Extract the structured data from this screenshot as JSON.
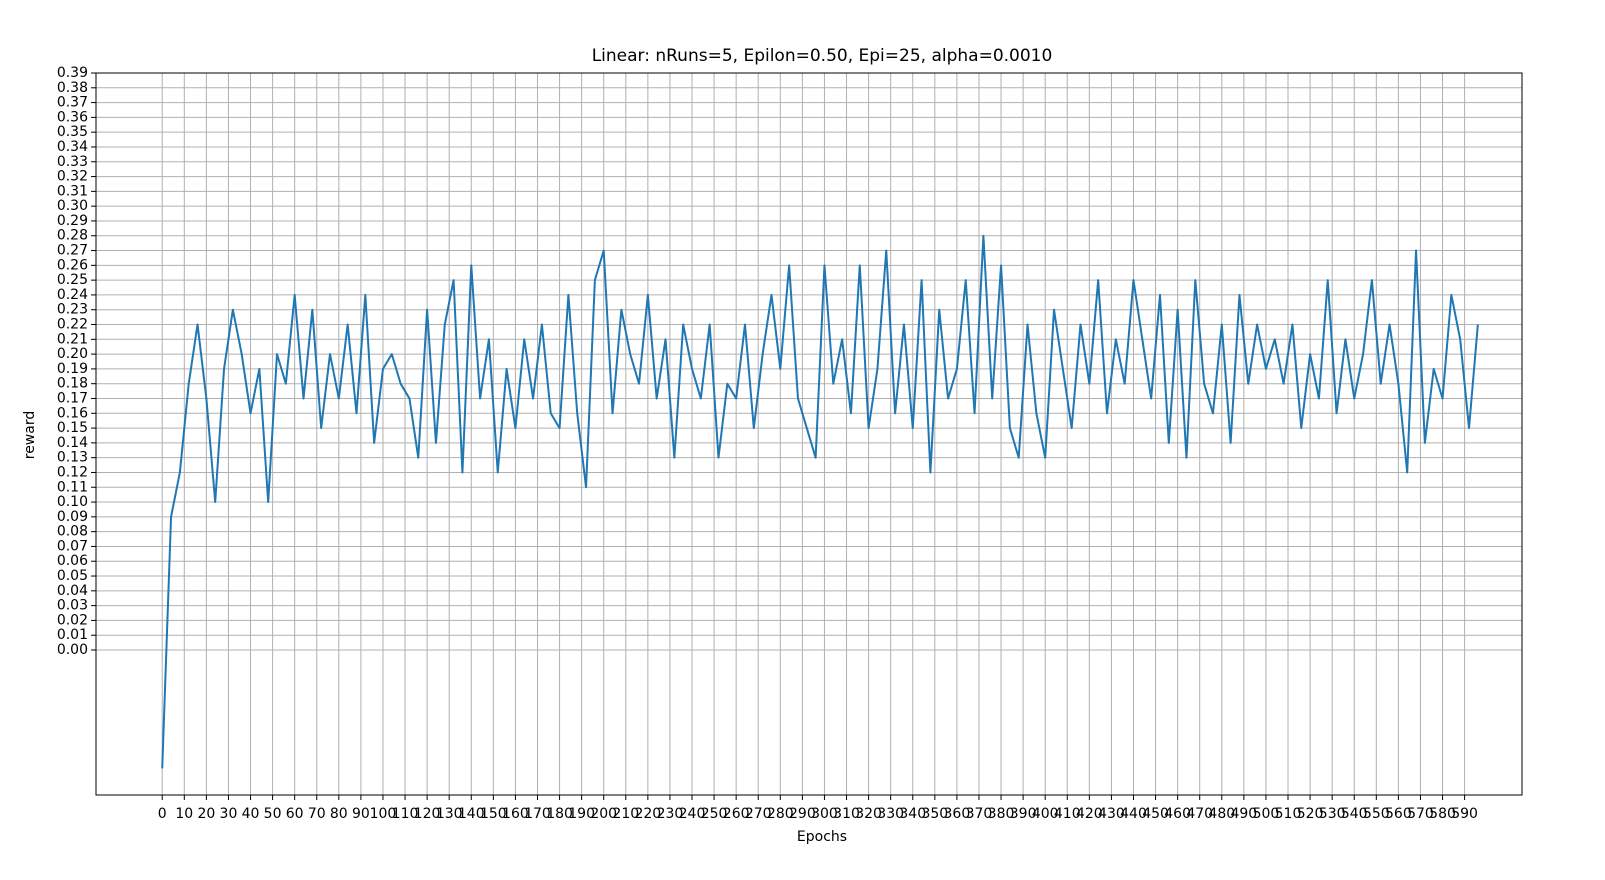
{
  "chart_data": {
    "type": "line",
    "title": "Linear: nRuns=5, Epilon=0.50, Epi=25, alpha=0.0010",
    "x_label": "Epochs",
    "y_label": "reward",
    "grid": true,
    "xlim": [
      -30,
      616
    ],
    "ylim": [
      -0.098,
      0.39
    ],
    "xticks": [
      0,
      10,
      20,
      30,
      40,
      50,
      60,
      70,
      80,
      90,
      100,
      110,
      120,
      130,
      140,
      150,
      160,
      170,
      180,
      190,
      200,
      210,
      220,
      230,
      240,
      250,
      260,
      270,
      280,
      290,
      300,
      310,
      320,
      330,
      340,
      350,
      360,
      370,
      380,
      390,
      400,
      410,
      420,
      430,
      440,
      450,
      460,
      470,
      480,
      490,
      500,
      510,
      520,
      530,
      540,
      550,
      560,
      570,
      580,
      590
    ],
    "yticks": [
      {
        "value": 0,
        "label": "0.00"
      },
      0.01,
      0.02,
      0.03,
      0.04,
      0.05,
      0.06,
      0.07,
      0.08,
      0.09,
      {
        "value": 0.1,
        "label": "0.10"
      },
      0.11,
      0.12,
      0.13,
      0.14,
      0.15,
      0.16,
      0.17,
      0.18,
      0.19,
      {
        "value": 0.2,
        "label": "0.20"
      },
      0.21,
      0.22,
      0.23,
      0.24,
      0.25,
      0.26,
      0.27,
      0.28,
      0.29,
      {
        "value": 0.3,
        "label": "0.30"
      },
      0.31,
      0.32,
      0.33,
      0.34,
      0.35,
      0.36,
      0.37,
      0.38,
      0.39
    ],
    "x": [
      0,
      4,
      8,
      12,
      16,
      20,
      24,
      28,
      32,
      36,
      40,
      44,
      48,
      52,
      56,
      60,
      64,
      68,
      72,
      76,
      80,
      84,
      88,
      92,
      96,
      100,
      104,
      108,
      112,
      116,
      120,
      124,
      128,
      132,
      136,
      140,
      144,
      148,
      152,
      156,
      160,
      164,
      168,
      172,
      176,
      180,
      184,
      188,
      192,
      196,
      200,
      204,
      208,
      212,
      216,
      220,
      224,
      228,
      232,
      236,
      240,
      244,
      248,
      252,
      256,
      260,
      264,
      268,
      272,
      276,
      280,
      284,
      288,
      292,
      296,
      300,
      304,
      308,
      312,
      316,
      320,
      324,
      328,
      332,
      336,
      340,
      344,
      348,
      352,
      356,
      360,
      364,
      368,
      372,
      376,
      380,
      384,
      388,
      392,
      396,
      400,
      404,
      408,
      412,
      416,
      420,
      424,
      428,
      432,
      436,
      440,
      444,
      448,
      452,
      456,
      460,
      464,
      468,
      472,
      476,
      480,
      484,
      488,
      492,
      496,
      500,
      504,
      508,
      512,
      516,
      520,
      524,
      528,
      532,
      536,
      540,
      544,
      548,
      552,
      556,
      560,
      564,
      568,
      572,
      576,
      580,
      584,
      588,
      592,
      596
    ],
    "series": [
      {
        "color": "#1f77b4",
        "values": [
          -0.08,
          0.09,
          0.12,
          0.18,
          0.22,
          0.17,
          0.1,
          0.19,
          0.23,
          0.2,
          0.16,
          0.19,
          0.1,
          0.2,
          0.18,
          0.24,
          0.17,
          0.23,
          0.15,
          0.2,
          0.17,
          0.22,
          0.16,
          0.24,
          0.14,
          0.19,
          0.2,
          0.18,
          0.17,
          0.13,
          0.23,
          0.14,
          0.22,
          0.25,
          0.12,
          0.26,
          0.17,
          0.21,
          0.12,
          0.19,
          0.15,
          0.21,
          0.17,
          0.22,
          0.16,
          0.15,
          0.24,
          0.16,
          0.11,
          0.25,
          0.27,
          0.16,
          0.23,
          0.2,
          0.18,
          0.24,
          0.17,
          0.21,
          0.13,
          0.22,
          0.19,
          0.17,
          0.22,
          0.13,
          0.18,
          0.17,
          0.22,
          0.15,
          0.2,
          0.24,
          0.19,
          0.26,
          0.17,
          0.15,
          0.13,
          0.26,
          0.18,
          0.21,
          0.16,
          0.26,
          0.15,
          0.19,
          0.27,
          0.16,
          0.22,
          0.15,
          0.25,
          0.12,
          0.23,
          0.17,
          0.19,
          0.25,
          0.16,
          0.28,
          0.17,
          0.26,
          0.15,
          0.13,
          0.22,
          0.16,
          0.13,
          0.23,
          0.19,
          0.15,
          0.22,
          0.18,
          0.25,
          0.16,
          0.21,
          0.18,
          0.25,
          0.21,
          0.17,
          0.24,
          0.14,
          0.23,
          0.13,
          0.25,
          0.18,
          0.16,
          0.22,
          0.14,
          0.24,
          0.18,
          0.22,
          0.19,
          0.21,
          0.18,
          0.22,
          0.15,
          0.2,
          0.17,
          0.25,
          0.16,
          0.21,
          0.17,
          0.2,
          0.25,
          0.18,
          0.22,
          0.18,
          0.12,
          0.27,
          0.14,
          0.19,
          0.17,
          0.24,
          0.21,
          0.15,
          0.22
        ]
      }
    ]
  }
}
